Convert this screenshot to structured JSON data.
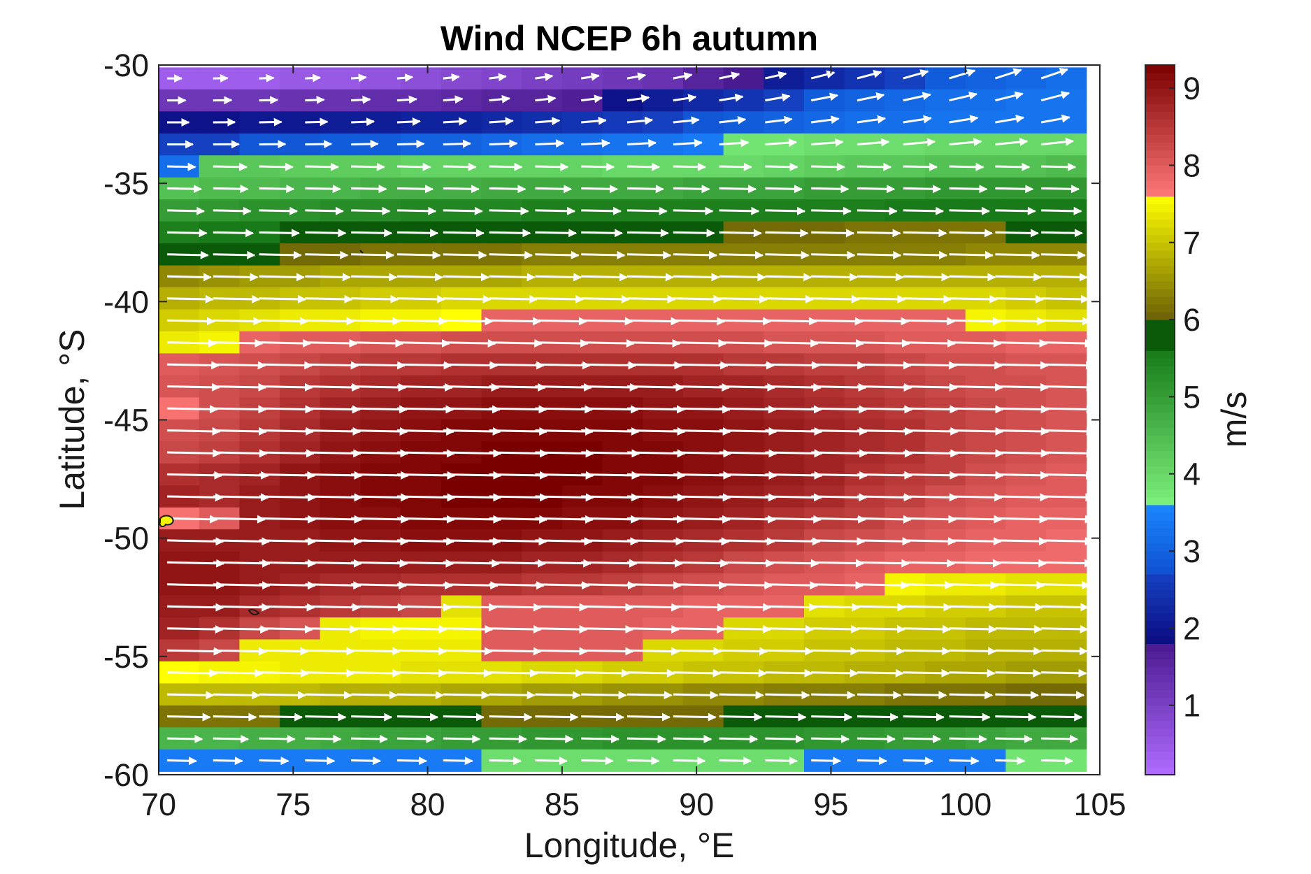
{
  "chart_data": {
    "type": "heatmap",
    "title": "Wind NCEP 6h autumn",
    "xlabel": "Longitude, °E",
    "ylabel": "Latitude, °S",
    "xlim": [
      70,
      105
    ],
    "ylim": [
      -60,
      -30
    ],
    "x_ticks": [
      "70",
      "75",
      "80",
      "85",
      "90",
      "95",
      "100",
      "105"
    ],
    "y_ticks": [
      "-30",
      "-35",
      "-40",
      "-45",
      "-50",
      "-55",
      "-60"
    ],
    "grid": false,
    "overlay": "white wind vectors (arrows)",
    "colorbar": {
      "label": "m/s",
      "min": 0.1,
      "max": 9.3,
      "ticks": [
        "1",
        "2",
        "3",
        "4",
        "5",
        "6",
        "7",
        "8",
        "9"
      ],
      "colors": [
        {
          "from": 0.1,
          "to": 1.8,
          "start": "#b06cff",
          "end": "#4a1a90"
        },
        {
          "from": 1.8,
          "to": 2.7,
          "start": "#0c0c82",
          "end": "#1540c0"
        },
        {
          "from": 2.7,
          "to": 3.6,
          "start": "#0f50d0",
          "end": "#1a86ff"
        },
        {
          "from": 3.6,
          "to": 5.6,
          "start": "#7cf07c",
          "end": "#187a18"
        },
        {
          "from": 5.6,
          "to": 6.0,
          "start": "#0a5a0a",
          "end": "#0a5a0a"
        },
        {
          "from": 6.0,
          "to": 7.6,
          "start": "#6b6006",
          "end": "#ffff00"
        },
        {
          "from": 7.6,
          "to": 9.3,
          "start": "#ff7878",
          "end": "#7a0000"
        }
      ]
    },
    "rows": [
      {
        "lat": -30.6,
        "v": [
          0.4,
          0.4,
          0.4,
          0.5,
          0.5,
          0.6,
          0.7,
          0.8,
          0.9,
          1.0,
          1.1,
          1.2,
          1.3,
          1.6,
          1.8,
          2.1,
          2.3,
          2.5,
          2.7,
          2.9,
          3.0,
          3.1,
          3.2
        ]
      },
      {
        "lat": -31.5,
        "v": [
          1.2,
          1.2,
          1.2,
          1.3,
          1.3,
          1.4,
          1.4,
          1.5,
          1.6,
          1.6,
          1.7,
          1.9,
          2.1,
          2.3,
          2.5,
          2.7,
          2.9,
          3.0,
          3.1,
          3.2,
          3.2,
          3.3,
          3.3
        ]
      },
      {
        "lat": -32.5,
        "v": [
          1.9,
          1.9,
          2.0,
          2.0,
          2.1,
          2.1,
          2.2,
          2.2,
          2.3,
          2.4,
          2.5,
          2.6,
          2.7,
          2.8,
          2.9,
          3.0,
          3.1,
          3.2,
          3.2,
          3.3,
          3.3,
          3.3,
          3.3
        ]
      },
      {
        "lat": -33.4,
        "v": [
          2.7,
          2.7,
          2.8,
          2.8,
          2.9,
          2.9,
          3.0,
          3.0,
          3.1,
          3.2,
          3.2,
          3.3,
          3.3,
          3.4,
          3.8,
          3.8,
          3.9,
          3.9,
          3.9,
          4.0,
          4.0,
          4.0,
          4.0
        ]
      },
      {
        "lat": -34.3,
        "v": [
          3.2,
          4.3,
          4.3,
          4.2,
          4.2,
          4.2,
          4.1,
          4.1,
          4.1,
          4.1,
          4.1,
          4.0,
          4.0,
          4.0,
          4.0,
          4.1,
          4.2,
          4.3,
          4.3,
          4.4,
          4.4,
          4.4,
          4.5
        ]
      },
      {
        "lat": -35.3,
        "v": [
          4.4,
          4.5,
          4.5,
          4.6,
          4.6,
          4.7,
          4.7,
          4.7,
          4.8,
          4.8,
          4.8,
          4.8,
          4.8,
          4.9,
          4.9,
          4.9,
          5.0,
          5.0,
          5.0,
          5.1,
          5.1,
          5.1,
          5.1
        ]
      },
      {
        "lat": -36.2,
        "v": [
          5.0,
          5.1,
          5.2,
          5.2,
          5.3,
          5.3,
          5.4,
          5.4,
          5.4,
          5.5,
          5.5,
          5.5,
          5.5,
          5.5,
          5.5,
          5.5,
          5.5,
          5.5,
          5.6,
          5.6,
          5.6,
          5.6,
          5.6
        ]
      },
      {
        "lat": -37.1,
        "v": [
          5.5,
          5.6,
          5.6,
          5.7,
          5.7,
          5.7,
          5.7,
          5.8,
          5.8,
          5.8,
          5.8,
          5.8,
          5.8,
          6.0,
          6.1,
          6.1,
          6.1,
          6.2,
          6.2,
          6.2,
          6.2,
          5.8,
          5.8
        ]
      },
      {
        "lat": -38.0,
        "v": [
          5.8,
          5.9,
          6.0,
          6.1,
          6.1,
          6.2,
          6.2,
          6.2,
          6.2,
          6.3,
          6.3,
          6.3,
          6.3,
          6.3,
          6.3,
          6.3,
          6.3,
          6.3,
          6.3,
          6.3,
          6.4,
          6.4,
          6.4
        ]
      },
      {
        "lat": -38.9,
        "v": [
          6.4,
          6.5,
          6.6,
          6.6,
          6.7,
          6.7,
          6.7,
          6.7,
          6.7,
          6.8,
          6.8,
          6.8,
          6.8,
          6.8,
          6.8,
          6.8,
          6.8,
          6.8,
          6.8,
          6.8,
          6.8,
          6.8,
          6.8
        ]
      },
      {
        "lat": -39.9,
        "v": [
          6.8,
          6.9,
          6.9,
          7.0,
          7.0,
          7.1,
          7.1,
          7.2,
          7.2,
          7.2,
          7.2,
          7.2,
          7.2,
          7.2,
          7.2,
          7.2,
          7.2,
          7.2,
          7.2,
          7.2,
          7.2,
          7.1,
          7.0
        ]
      },
      {
        "lat": -40.8,
        "v": [
          7.1,
          7.2,
          7.3,
          7.4,
          7.4,
          7.5,
          7.5,
          7.6,
          7.9,
          7.9,
          7.9,
          7.9,
          7.9,
          7.9,
          7.9,
          7.9,
          7.9,
          7.9,
          7.9,
          7.9,
          7.5,
          7.4,
          7.3
        ]
      },
      {
        "lat": -41.7,
        "v": [
          7.4,
          7.5,
          7.9,
          8.0,
          8.0,
          8.1,
          8.1,
          8.2,
          8.2,
          8.2,
          8.2,
          8.2,
          8.2,
          8.2,
          8.2,
          8.1,
          8.1,
          8.1,
          8.0,
          8.0,
          8.0,
          7.9,
          7.9
        ]
      },
      {
        "lat": -42.7,
        "v": [
          8.0,
          8.1,
          8.2,
          8.3,
          8.4,
          8.5,
          8.5,
          8.6,
          8.6,
          8.6,
          8.6,
          8.6,
          8.6,
          8.6,
          8.5,
          8.5,
          8.4,
          8.4,
          8.3,
          8.2,
          8.2,
          8.1,
          8.1
        ]
      },
      {
        "lat": -43.6,
        "v": [
          8.1,
          8.2,
          8.3,
          8.5,
          8.6,
          8.7,
          8.8,
          8.8,
          8.9,
          8.9,
          8.9,
          8.9,
          8.9,
          8.8,
          8.8,
          8.7,
          8.6,
          8.5,
          8.4,
          8.3,
          8.2,
          8.2,
          8.1
        ]
      },
      {
        "lat": -44.5,
        "v": [
          7.7,
          8.2,
          8.4,
          8.6,
          8.8,
          8.9,
          9.0,
          9.0,
          9.1,
          9.1,
          9.1,
          9.1,
          9.0,
          9.0,
          8.9,
          8.8,
          8.7,
          8.6,
          8.5,
          8.4,
          8.3,
          8.2,
          8.1
        ]
      },
      {
        "lat": -45.4,
        "v": [
          8.2,
          8.3,
          8.5,
          8.7,
          8.9,
          9.0,
          9.1,
          9.2,
          9.2,
          9.2,
          9.2,
          9.2,
          9.1,
          9.1,
          9.0,
          8.9,
          8.8,
          8.7,
          8.6,
          8.4,
          8.3,
          8.2,
          8.1
        ]
      },
      {
        "lat": -46.4,
        "v": [
          8.3,
          8.4,
          8.6,
          8.8,
          9.0,
          9.1,
          9.2,
          9.2,
          9.3,
          9.3,
          9.3,
          9.2,
          9.2,
          9.1,
          9.0,
          8.9,
          8.8,
          8.7,
          8.6,
          8.4,
          8.3,
          8.2,
          8.1
        ]
      },
      {
        "lat": -47.3,
        "v": [
          8.6,
          8.7,
          8.8,
          9.0,
          9.1,
          9.2,
          9.2,
          9.3,
          9.3,
          9.3,
          9.3,
          9.2,
          9.2,
          9.1,
          9.0,
          8.9,
          8.8,
          8.6,
          8.5,
          8.4,
          8.2,
          8.1,
          8.0
        ]
      },
      {
        "lat": -48.2,
        "v": [
          8.8,
          8.7,
          8.9,
          9.0,
          9.1,
          9.2,
          9.2,
          9.3,
          9.3,
          9.3,
          9.2,
          9.2,
          9.1,
          9.0,
          8.9,
          8.8,
          8.7,
          8.5,
          8.4,
          8.2,
          8.1,
          8.0,
          8.0
        ]
      },
      {
        "lat": -49.2,
        "v": [
          7.7,
          8.0,
          8.9,
          9.0,
          9.1,
          9.1,
          9.2,
          9.2,
          9.2,
          9.2,
          9.1,
          9.1,
          9.0,
          8.9,
          8.8,
          8.6,
          8.5,
          8.4,
          8.2,
          8.1,
          8.0,
          7.9,
          7.9
        ]
      },
      {
        "lat": -50.1,
        "v": [
          8.9,
          8.9,
          8.9,
          8.9,
          9.0,
          9.0,
          9.1,
          9.1,
          9.1,
          9.0,
          9.0,
          8.9,
          8.8,
          8.7,
          8.6,
          8.5,
          8.3,
          8.2,
          8.1,
          8.0,
          7.9,
          7.9,
          7.8
        ]
      },
      {
        "lat": -51.0,
        "v": [
          9.0,
          9.0,
          8.9,
          8.9,
          8.9,
          8.9,
          8.9,
          8.9,
          8.9,
          8.8,
          8.8,
          8.7,
          8.6,
          8.5,
          8.3,
          8.2,
          8.1,
          8.0,
          7.9,
          7.9,
          7.8,
          7.8,
          7.8
        ]
      },
      {
        "lat": -52.0,
        "v": [
          9.0,
          9.0,
          8.9,
          8.8,
          8.7,
          8.7,
          8.6,
          8.6,
          8.6,
          8.5,
          8.5,
          8.4,
          8.3,
          8.2,
          8.1,
          8.0,
          8.0,
          7.9,
          7.5,
          7.4,
          7.4,
          7.3,
          7.3
        ]
      },
      {
        "lat": -52.9,
        "v": [
          8.9,
          8.9,
          8.7,
          8.6,
          8.5,
          8.4,
          8.3,
          7.3,
          8.0,
          8.0,
          8.0,
          8.0,
          8.0,
          7.9,
          7.9,
          7.9,
          7.3,
          7.2,
          7.2,
          7.1,
          7.1,
          7.0,
          7.0
        ]
      },
      {
        "lat": -53.8,
        "v": [
          8.8,
          8.6,
          8.3,
          8.1,
          7.4,
          7.5,
          7.5,
          7.5,
          8.0,
          8.0,
          8.0,
          8.0,
          7.9,
          7.9,
          7.2,
          7.2,
          7.1,
          7.1,
          7.0,
          7.0,
          6.9,
          6.9,
          6.9
        ]
      },
      {
        "lat": -54.7,
        "v": [
          8.5,
          8.3,
          7.4,
          7.4,
          7.4,
          7.4,
          7.4,
          7.4,
          8.0,
          8.0,
          8.0,
          8.0,
          7.2,
          7.2,
          7.1,
          7.1,
          7.0,
          7.0,
          6.9,
          6.9,
          6.8,
          6.8,
          6.8
        ]
      },
      {
        "lat": -55.7,
        "v": [
          7.6,
          7.5,
          7.5,
          7.4,
          7.4,
          7.4,
          7.3,
          7.3,
          7.3,
          7.2,
          7.2,
          7.1,
          7.1,
          7.0,
          7.0,
          6.9,
          6.9,
          6.8,
          6.8,
          6.7,
          6.7,
          6.6,
          6.6
        ]
      },
      {
        "lat": -56.6,
        "v": [
          6.9,
          6.9,
          6.9,
          6.9,
          6.8,
          6.8,
          6.8,
          6.7,
          6.7,
          6.6,
          6.6,
          6.5,
          6.5,
          6.4,
          6.4,
          6.3,
          6.3,
          6.3,
          6.2,
          6.2,
          6.2,
          6.1,
          6.1
        ]
      },
      {
        "lat": -57.5,
        "v": [
          6.2,
          6.2,
          6.2,
          5.7,
          5.7,
          5.7,
          5.7,
          5.7,
          6.1,
          6.1,
          6.1,
          6.1,
          6.1,
          6.1,
          5.7,
          5.7,
          5.7,
          5.7,
          5.7,
          5.7,
          5.7,
          5.7,
          5.7
        ]
      },
      {
        "lat": -58.5,
        "v": [
          4.6,
          4.6,
          4.7,
          4.7,
          4.8,
          4.9,
          4.9,
          5.0,
          5.0,
          5.1,
          5.1,
          5.2,
          5.2,
          5.2,
          5.2,
          5.2,
          5.1,
          5.1,
          5.0,
          5.0,
          4.9,
          4.8,
          4.8
        ]
      },
      {
        "lat": -59.4,
        "v": [
          3.4,
          3.4,
          3.4,
          3.4,
          3.4,
          3.4,
          3.4,
          3.4,
          3.9,
          3.9,
          3.9,
          3.9,
          3.9,
          3.9,
          3.9,
          3.9,
          3.4,
          3.4,
          3.4,
          3.4,
          3.4,
          3.8,
          3.8
        ]
      }
    ]
  }
}
